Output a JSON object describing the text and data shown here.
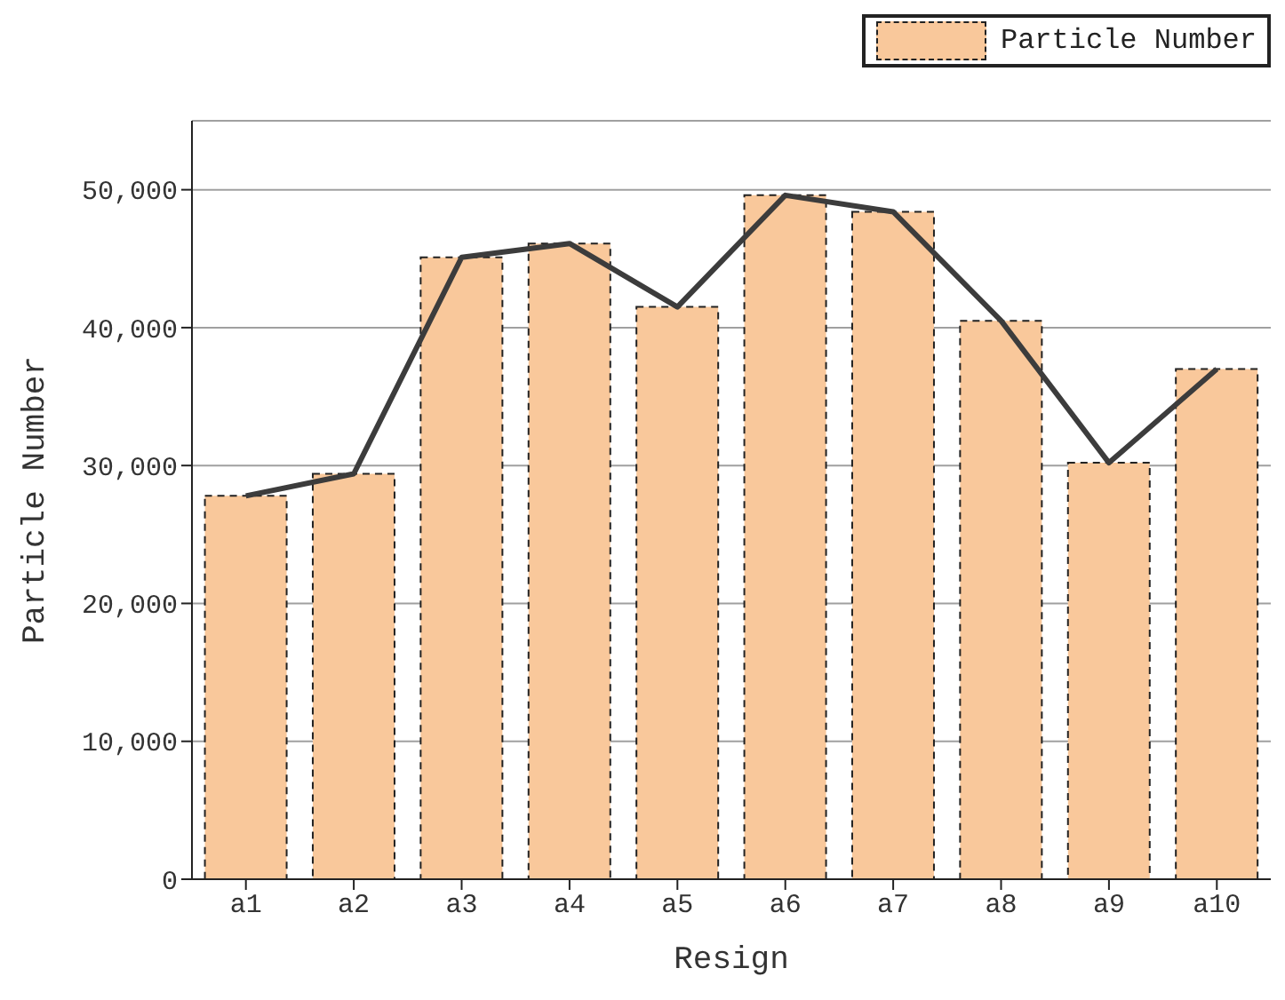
{
  "chart_data": {
    "type": "bar",
    "xlabel": "Resign",
    "ylabel": "Particle Number",
    "categories": [
      "a1",
      "a2",
      "a3",
      "a4",
      "a5",
      "a6",
      "a7",
      "a8",
      "a9",
      "a10"
    ],
    "series": [
      {
        "name": "Particle Number",
        "color": "#f9c89b",
        "values": [
          27800,
          29400,
          45100,
          46100,
          41500,
          49600,
          48400,
          40500,
          30200,
          37000
        ]
      },
      {
        "type": "line",
        "color": "#3c3c3c",
        "values": [
          27800,
          29400,
          45100,
          46100,
          41500,
          49600,
          48400,
          40500,
          30200,
          37000
        ]
      }
    ],
    "ylim": [
      0,
      55000
    ],
    "yticks": [
      {
        "value": 0,
        "label": "0"
      },
      {
        "value": 10000,
        "label": "10,000"
      },
      {
        "value": 20000,
        "label": "20,000"
      },
      {
        "value": 30000,
        "label": "30,000"
      },
      {
        "value": 40000,
        "label": "40,000"
      },
      {
        "value": 50000,
        "label": "50,000"
      }
    ],
    "grid": "y",
    "legend": "top right"
  }
}
